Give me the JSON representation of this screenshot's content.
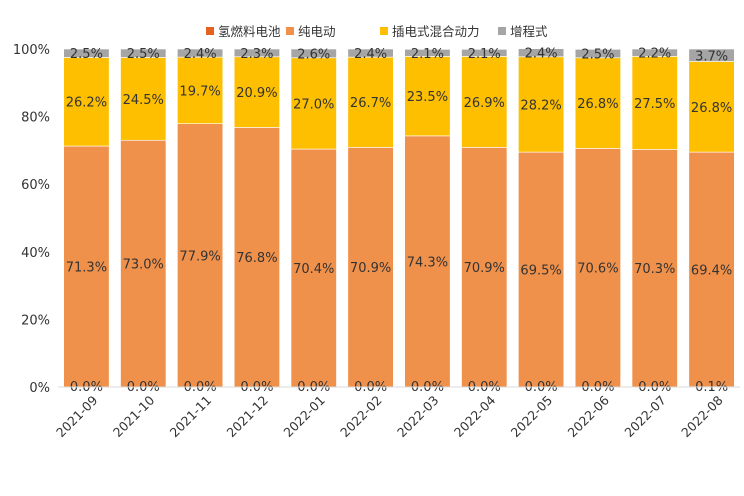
{
  "chart_data": {
    "type": "bar",
    "stacked": "percent",
    "legend_position": "top",
    "grid": false,
    "ylim": [
      0,
      100
    ],
    "y_ticks": [
      "0%",
      "20%",
      "40%",
      "60%",
      "80%",
      "100%"
    ],
    "categories": [
      "2021-09",
      "2021-10",
      "2021-11",
      "2021-12",
      "2022-01",
      "2022-02",
      "2022-03",
      "2022-04",
      "2022-05",
      "2022-06",
      "2022-07",
      "2022-08"
    ],
    "series": [
      {
        "name": "氢燃料电池",
        "color": "#e4611f",
        "values": [
          0.0,
          0.0,
          0.0,
          0.0,
          0.0,
          0.0,
          0.0,
          0.0,
          0.0,
          0.0,
          0.0,
          0.1
        ],
        "labels": [
          "0.0%",
          "0.0%",
          "0.0%",
          "0.0%",
          "0.0%",
          "0.0%",
          "0.0%",
          "0.0%",
          "0.0%",
          "0.0%",
          "0.0%",
          "0.1%"
        ]
      },
      {
        "name": "纯电动",
        "color": "#f0914b",
        "values": [
          71.3,
          73.0,
          77.9,
          76.8,
          70.4,
          70.9,
          74.3,
          70.9,
          69.5,
          70.6,
          70.3,
          69.4
        ],
        "labels": [
          "71.3%",
          "73.0%",
          "77.9%",
          "76.8%",
          "70.4%",
          "70.9%",
          "74.3%",
          "70.9%",
          "69.5%",
          "70.6%",
          "70.3%",
          "69.4%"
        ]
      },
      {
        "name": "插电式混合动力",
        "color": "#fdbf00",
        "values": [
          26.2,
          24.5,
          19.7,
          20.9,
          27.0,
          26.7,
          23.5,
          26.9,
          28.2,
          26.8,
          27.5,
          26.8
        ],
        "labels": [
          "26.2%",
          "24.5%",
          "19.7%",
          "20.9%",
          "27.0%",
          "26.7%",
          "23.5%",
          "26.9%",
          "28.2%",
          "26.8%",
          "27.5%",
          "26.8%"
        ]
      },
      {
        "name": "增程式",
        "color": "#a5a5a5",
        "values": [
          2.5,
          2.5,
          2.4,
          2.3,
          2.6,
          2.4,
          2.1,
          2.1,
          2.4,
          2.5,
          2.2,
          3.7
        ],
        "labels": [
          "2.5%",
          "2.5%",
          "2.4%",
          "2.3%",
          "2.6%",
          "2.4%",
          "2.1%",
          "2.1%",
          "2.4%",
          "2.5%",
          "2.2%",
          "3.7%"
        ]
      }
    ]
  }
}
